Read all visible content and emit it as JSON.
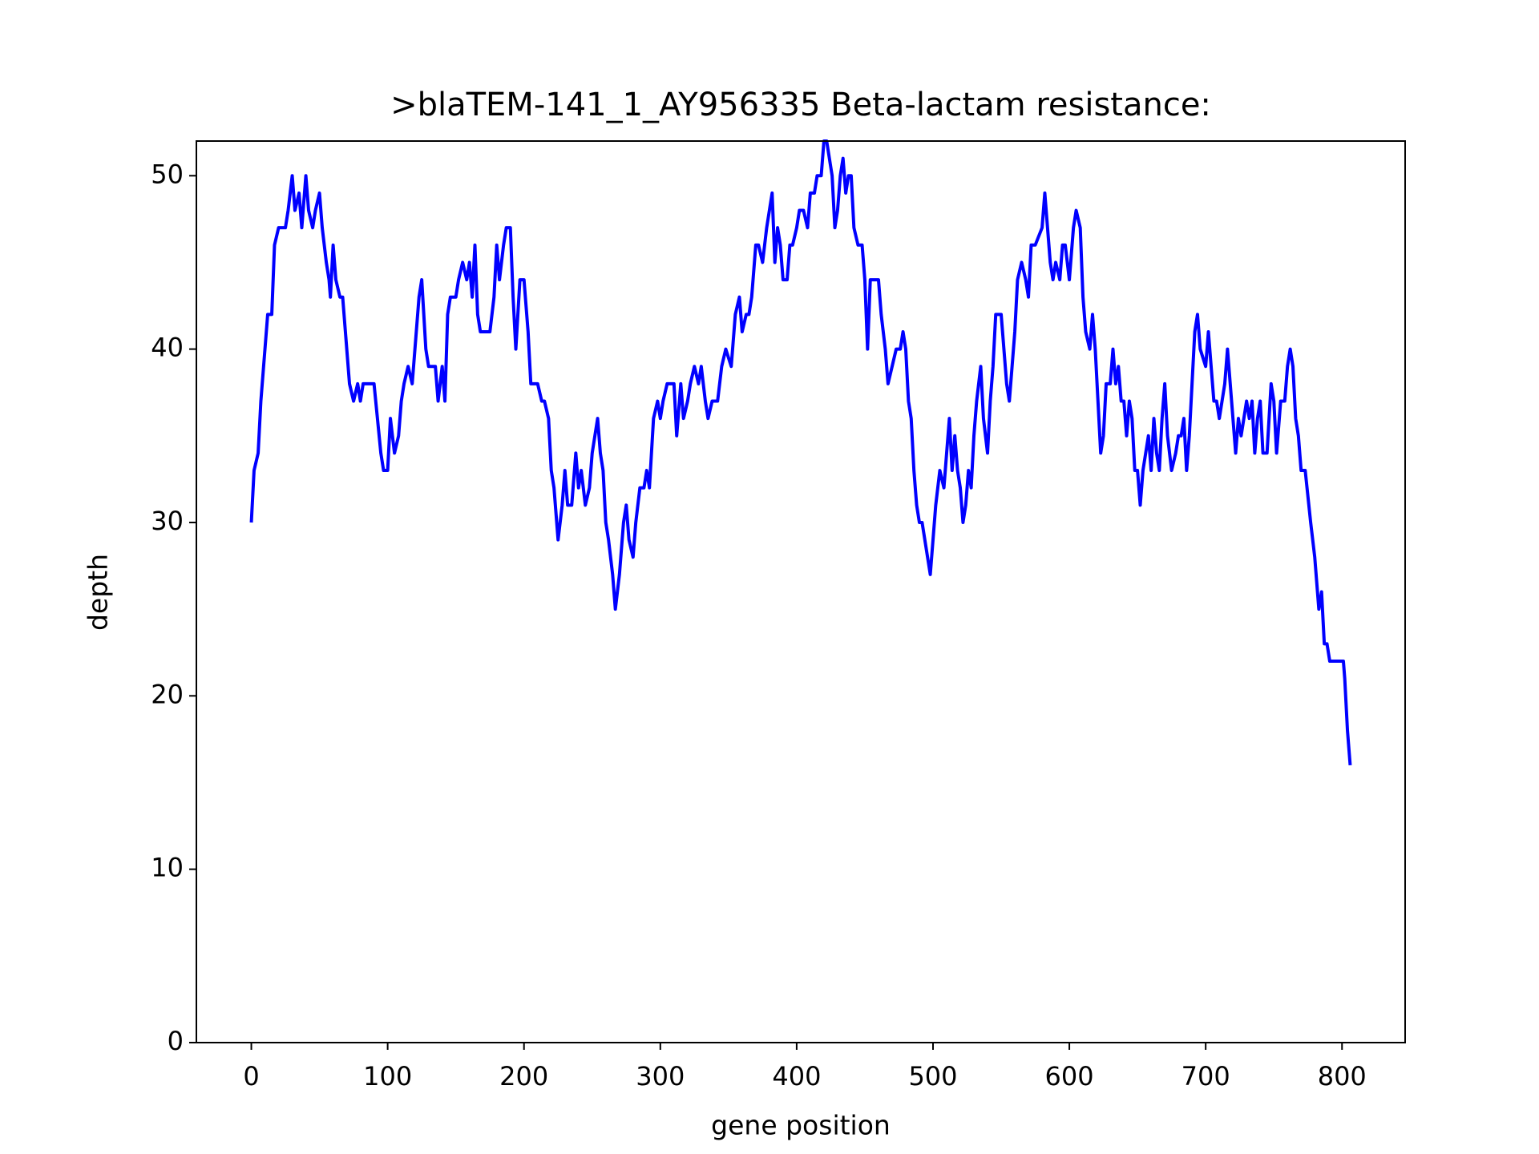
{
  "chart_data": {
    "type": "line",
    "title": ">blaTEM-141_1_AY956335 Beta-lactam resistance:",
    "xlabel": "gene position",
    "ylabel": "depth",
    "color": "#0000ff",
    "x": [
      0,
      2,
      5,
      7,
      10,
      12,
      15,
      17,
      20,
      25,
      27,
      30,
      32,
      35,
      37,
      40,
      42,
      45,
      47,
      50,
      52,
      55,
      57,
      58,
      60,
      62,
      65,
      67,
      70,
      72,
      75,
      78,
      80,
      82,
      90,
      95,
      97,
      100,
      102,
      105,
      108,
      110,
      112,
      115,
      118,
      120,
      123,
      125,
      128,
      130,
      135,
      137,
      140,
      142,
      144,
      146,
      150,
      152,
      155,
      158,
      160,
      162,
      164,
      166,
      168,
      175,
      178,
      180,
      182,
      185,
      187,
      190,
      192,
      194,
      197,
      200,
      203,
      205,
      210,
      213,
      215,
      218,
      220,
      222,
      225,
      228,
      230,
      232,
      235,
      238,
      240,
      242,
      245,
      248,
      250,
      252,
      254,
      256,
      258,
      260,
      262,
      265,
      267,
      270,
      273,
      275,
      277,
      280,
      282,
      285,
      288,
      290,
      292,
      295,
      298,
      300,
      302,
      305,
      310,
      312,
      315,
      317,
      320,
      322,
      325,
      328,
      330,
      333,
      335,
      338,
      342,
      345,
      348,
      352,
      355,
      358,
      360,
      363,
      365,
      367,
      370,
      372,
      375,
      378,
      380,
      382,
      384,
      386,
      388,
      390,
      393,
      395,
      397,
      400,
      402,
      405,
      408,
      410,
      413,
      415,
      418,
      420,
      422,
      424,
      426,
      428,
      430,
      432,
      434,
      436,
      438,
      440,
      442,
      445,
      448,
      450,
      452,
      454,
      456,
      460,
      462,
      465,
      467,
      470,
      473,
      476,
      478,
      480,
      482,
      484,
      486,
      488,
      490,
      492,
      494,
      498,
      500,
      502,
      505,
      508,
      510,
      512,
      514,
      516,
      518,
      520,
      522,
      524,
      526,
      528,
      530,
      532,
      535,
      537,
      540,
      542,
      544,
      546,
      550,
      552,
      554,
      556,
      558,
      560,
      562,
      565,
      568,
      570,
      572,
      575,
      580,
      582,
      584,
      586,
      588,
      590,
      593,
      595,
      597,
      600,
      603,
      605,
      608,
      610,
      612,
      615,
      617,
      619,
      621,
      623,
      625,
      627,
      630,
      632,
      634,
      636,
      638,
      640,
      642,
      644,
      646,
      648,
      650,
      652,
      654,
      656,
      658,
      660,
      662,
      664,
      666,
      668,
      670,
      672,
      675,
      678,
      680,
      682,
      684,
      686,
      688,
      690,
      692,
      694,
      696,
      700,
      702,
      704,
      706,
      708,
      710,
      712,
      714,
      716,
      718,
      720,
      722,
      724,
      726,
      728,
      730,
      732,
      734,
      736,
      738,
      740,
      742,
      745,
      748,
      750,
      752,
      755,
      758,
      760,
      762,
      764,
      766,
      768,
      770,
      773,
      777,
      780,
      782,
      783,
      785,
      787,
      789,
      791,
      801,
      802,
      804,
      806
    ],
    "values": [
      30,
      33,
      34,
      37,
      40,
      42,
      42,
      46,
      47,
      47,
      48,
      50,
      48,
      49,
      47,
      50,
      48,
      47,
      48,
      49,
      47,
      45,
      44,
      43,
      46,
      44,
      43,
      43,
      40,
      38,
      37,
      38,
      37,
      38,
      38,
      34,
      33,
      33,
      36,
      34,
      35,
      37,
      38,
      39,
      38,
      40,
      43,
      44,
      40,
      39,
      39,
      37,
      39,
      37,
      42,
      43,
      43,
      44,
      45,
      44,
      45,
      43,
      46,
      42,
      41,
      41,
      43,
      46,
      44,
      46,
      47,
      47,
      43,
      40,
      44,
      44,
      41,
      38,
      38,
      37,
      37,
      36,
      33,
      32,
      29,
      31,
      33,
      31,
      31,
      34,
      32,
      33,
      31,
      32,
      34,
      35,
      36,
      34,
      33,
      30,
      29,
      27,
      25,
      27,
      30,
      31,
      29,
      28,
      30,
      32,
      32,
      33,
      32,
      36,
      37,
      36,
      37,
      38,
      38,
      35,
      38,
      36,
      37,
      38,
      39,
      38,
      39,
      37,
      36,
      37,
      37,
      39,
      40,
      39,
      42,
      43,
      41,
      42,
      42,
      43,
      46,
      46,
      45,
      47,
      48,
      49,
      45,
      47,
      46,
      44,
      44,
      46,
      46,
      47,
      48,
      48,
      47,
      49,
      49,
      50,
      50,
      52,
      52,
      51,
      50,
      47,
      48,
      50,
      51,
      49,
      50,
      50,
      47,
      46,
      46,
      44,
      40,
      44,
      44,
      44,
      42,
      40,
      38,
      39,
      40,
      40,
      41,
      40,
      37,
      36,
      33,
      31,
      30,
      30,
      29,
      27,
      29,
      31,
      33,
      32,
      34,
      36,
      33,
      35,
      33,
      32,
      30,
      31,
      33,
      32,
      35,
      37,
      39,
      36,
      34,
      37,
      39,
      42,
      42,
      40,
      38,
      37,
      39,
      41,
      44,
      45,
      44,
      43,
      46,
      46,
      47,
      49,
      47,
      45,
      44,
      45,
      44,
      46,
      46,
      44,
      47,
      48,
      47,
      43,
      41,
      40,
      42,
      40,
      37,
      34,
      35,
      38,
      38,
      40,
      38,
      39,
      37,
      37,
      35,
      37,
      36,
      33,
      33,
      31,
      33,
      34,
      35,
      33,
      36,
      34,
      33,
      36,
      38,
      35,
      33,
      34,
      35,
      35,
      36,
      33,
      35,
      38,
      41,
      42,
      40,
      39,
      41,
      39,
      37,
      37,
      36,
      37,
      38,
      40,
      38,
      36,
      34,
      36,
      35,
      36,
      37,
      36,
      37,
      34,
      36,
      37,
      34,
      34,
      38,
      37,
      34,
      37,
      37,
      39,
      40,
      39,
      36,
      35,
      33,
      33,
      30,
      28,
      26,
      25,
      26,
      23,
      23,
      22,
      22,
      21,
      18,
      16
    ],
    "xlim": [
      -40.3,
      846.3
    ],
    "ylim": [
      0,
      52
    ],
    "xticks": [
      0,
      100,
      200,
      300,
      400,
      500,
      600,
      700,
      800
    ],
    "yticks": [
      0,
      10,
      20,
      30,
      40,
      50
    ]
  }
}
